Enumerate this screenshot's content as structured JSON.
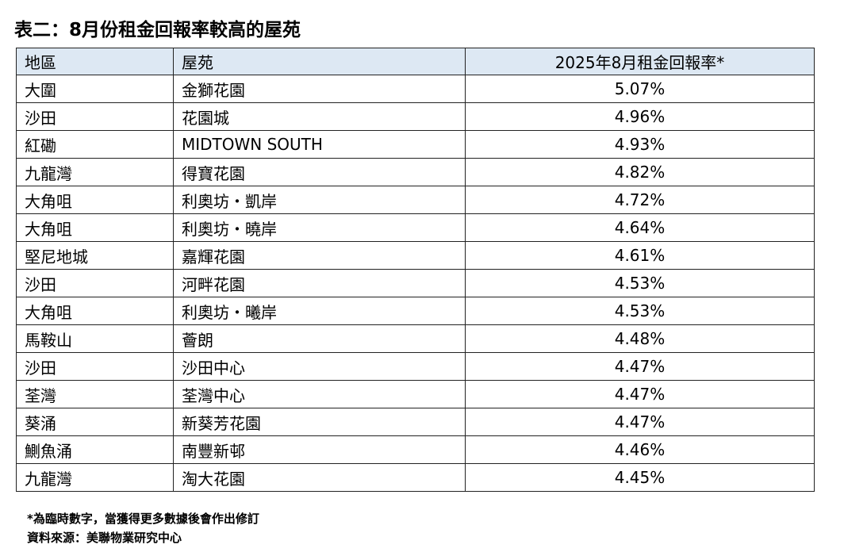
{
  "title": "表二：8月份租金回報率較高的屋苑",
  "table": {
    "header": [
      "地區",
      "屋苑",
      "2025年8月租金回報率*"
    ],
    "rows": [
      [
        "大圍",
        "金獅花園",
        "5.07%"
      ],
      [
        "沙田",
        "花園城",
        "4.96%"
      ],
      [
        "紅磡",
        "MIDTOWN SOUTH",
        "4.93%"
      ],
      [
        "九龍灣",
        "得寶花園",
        "4.82%"
      ],
      [
        "大角咀",
        "利奧坊・凱岸",
        "4.72%"
      ],
      [
        "大角咀",
        "利奧坊・曉岸",
        "4.64%"
      ],
      [
        "堅尼地城",
        "嘉輝花園",
        "4.61%"
      ],
      [
        "沙田",
        "河畔花園",
        "4.53%"
      ],
      [
        "大角咀",
        "利奧坊・曦岸",
        "4.53%"
      ],
      [
        "馬鞍山",
        "薈朗",
        "4.48%"
      ],
      [
        "沙田",
        "沙田中心",
        "4.47%"
      ],
      [
        "荃灣",
        "荃灣中心",
        "4.47%"
      ],
      [
        "葵涌",
        "新葵芳花園",
        "4.47%"
      ],
      [
        "鰂魚涌",
        "南豐新邨",
        "4.46%"
      ],
      [
        "九龍灣",
        "淘大花園",
        "4.45%"
      ]
    ]
  },
  "notes": [
    "*為臨時數字，當獲得更多數據後會作出修訂",
    "資料來源：美聯物業研究中心"
  ]
}
